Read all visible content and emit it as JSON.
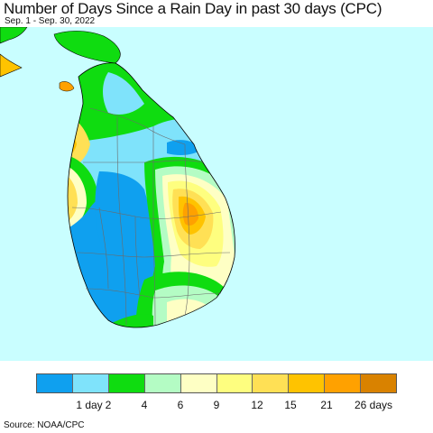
{
  "title": "Number of Days Since a Rain Day in past 30 days (CPC)",
  "subtitle": "Sep. 1 - Sep. 30, 2022",
  "source": "Source: NOAA/CPC",
  "legend": {
    "labels": [
      "1 day",
      "2",
      "4",
      "6",
      "9",
      "12",
      "15",
      "21",
      "26 days"
    ],
    "colors": [
      "#0fa0ef",
      "#7fe3fb",
      "#0fdc10",
      "#b4fcc4",
      "#feffc4",
      "#fefe7f",
      "#ffe055",
      "#ffc300",
      "#ffa100",
      "#d98200"
    ]
  },
  "map": {
    "ocean_color": "#c9feff",
    "region": "Sri Lanka"
  }
}
